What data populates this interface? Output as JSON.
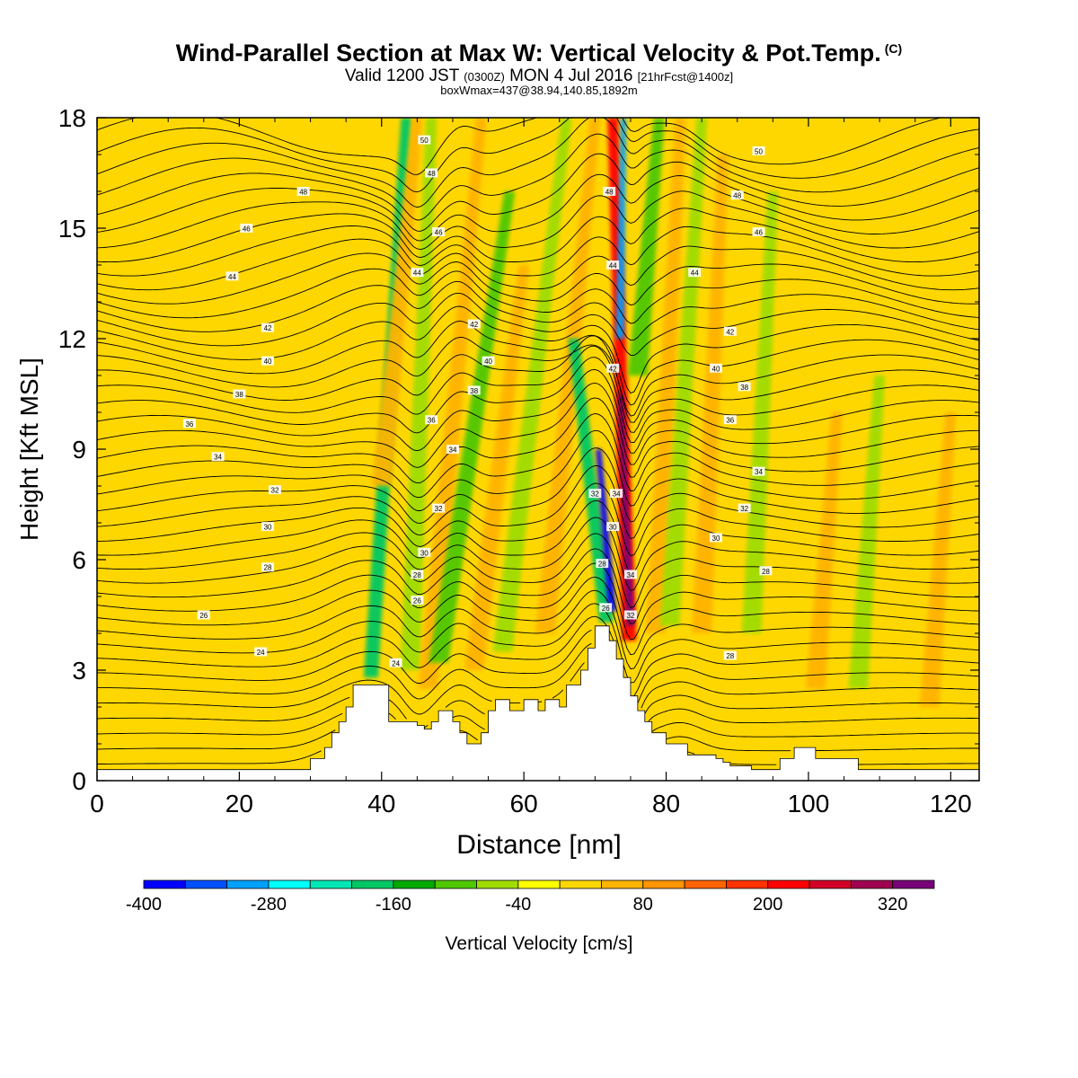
{
  "title": {
    "main": "Wind-Parallel Section at Max W: Vertical Velocity & Pot.Temp.",
    "copyright": "(C)",
    "valid_prefix": "Valid 1200 JST",
    "valid_utc": "(0300Z)",
    "valid_date": "MON 4 Jul 2016",
    "forecast": "[21hrFcst@1400z]",
    "box": "boxWmax=437@38.94,140.85,1892m"
  },
  "chart_data": {
    "type": "heatmap",
    "xlabel": "Distance [nm]",
    "ylabel": "Height [Kft MSL]",
    "xlim": [
      0,
      124
    ],
    "ylim": [
      0,
      18
    ],
    "xticks": [
      0,
      20,
      40,
      60,
      80,
      100,
      120
    ],
    "yticks": [
      0,
      3,
      6,
      9,
      12,
      15,
      18
    ],
    "background_w": 0,
    "terrain": {
      "x": [
        0,
        29,
        30,
        31,
        32,
        33,
        34,
        35,
        36,
        40,
        41,
        42,
        43,
        44,
        45,
        46,
        47,
        48,
        49,
        50,
        51,
        52,
        53,
        54,
        55,
        56,
        57,
        58,
        59,
        60,
        61,
        62,
        63,
        64,
        65,
        66,
        67,
        68,
        69,
        70,
        71,
        72,
        73,
        74,
        75,
        76,
        77,
        78,
        79,
        80,
        81,
        82,
        83,
        84,
        85,
        86,
        87,
        88,
        89,
        90,
        91,
        92,
        93,
        94,
        95,
        96,
        97,
        98,
        99,
        100,
        101,
        102,
        103,
        104,
        105,
        106,
        107,
        108,
        110,
        124
      ],
      "y": [
        0.3,
        0.3,
        0.6,
        0.6,
        0.9,
        1.3,
        1.6,
        2.0,
        2.6,
        2.6,
        1.6,
        1.6,
        1.6,
        1.6,
        1.5,
        1.4,
        1.6,
        1.9,
        1.9,
        1.6,
        1.3,
        1.0,
        1.0,
        1.3,
        1.9,
        2.2,
        2.2,
        1.9,
        1.9,
        2.2,
        2.2,
        1.9,
        2.2,
        2.2,
        2.0,
        2.6,
        2.6,
        3.0,
        3.6,
        4.2,
        4.2,
        3.8,
        3.3,
        2.8,
        2.3,
        1.9,
        1.6,
        1.3,
        1.3,
        1.0,
        1.0,
        1.0,
        0.7,
        0.7,
        0.7,
        0.7,
        0.6,
        0.5,
        0.4,
        0.4,
        0.4,
        0.3,
        0.3,
        0.3,
        0.3,
        0.6,
        0.6,
        0.9,
        0.9,
        0.9,
        0.6,
        0.6,
        0.6,
        0.6,
        0.6,
        0.6,
        0.3,
        0.3,
        0.3,
        0.3
      ]
    },
    "w_features": [
      {
        "x": 38.5,
        "y": 2.8,
        "x2": 43.5,
        "y2": 18,
        "value": -180
      },
      {
        "x": 40,
        "y": 8.0,
        "x2": 45,
        "y2": 18,
        "value": 60
      },
      {
        "x": 44,
        "y": 3.0,
        "x2": 47,
        "y2": 18,
        "value": -80
      },
      {
        "x": 46.5,
        "y": 2.5,
        "x2": 54,
        "y2": 18,
        "value": 40
      },
      {
        "x": 48,
        "y": 3.2,
        "x2": 58,
        "y2": 16,
        "value": -90
      },
      {
        "x": 53,
        "y": 3.0,
        "x2": 60,
        "y2": 14,
        "value": 50
      },
      {
        "x": 57,
        "y": 3.5,
        "x2": 66,
        "y2": 18,
        "value": -70
      },
      {
        "x": 63,
        "y": 4.0,
        "x2": 70,
        "y2": 18,
        "value": 60
      },
      {
        "x": 71.6,
        "y": 4.3,
        "x2": 67,
        "y2": 12.0,
        "value": -200
      },
      {
        "x": 72.4,
        "y": 4.6,
        "x2": 70.5,
        "y2": 9.0,
        "value": -380
      },
      {
        "x": 74.8,
        "y": 3.8,
        "x2": 72.5,
        "y2": 18,
        "value": 200
      },
      {
        "x": 75.0,
        "y": 4.2,
        "x2": 73.6,
        "y2": 10.5,
        "value": 360
      },
      {
        "x": 73.5,
        "y": 12.0,
        "x2": 74,
        "y2": 18,
        "value": -300
      },
      {
        "x": 76,
        "y": 11.0,
        "x2": 79,
        "y2": 18,
        "value": -100
      },
      {
        "x": 78.5,
        "y": 4.0,
        "x2": 82,
        "y2": 18,
        "value": 50
      },
      {
        "x": 80.5,
        "y": 4.2,
        "x2": 85,
        "y2": 18,
        "value": -80
      },
      {
        "x": 85,
        "y": 4.0,
        "x2": 88,
        "y2": 17,
        "value": 40
      },
      {
        "x": 92,
        "y": 4.0,
        "x2": 95,
        "y2": 16,
        "value": -60
      },
      {
        "x": 101,
        "y": 2.5,
        "x2": 104,
        "y2": 10,
        "value": 40
      },
      {
        "x": 107,
        "y": 2.5,
        "x2": 110,
        "y2": 11,
        "value": -60
      },
      {
        "x": 117,
        "y": 2.0,
        "x2": 120,
        "y2": 10,
        "value": 40
      }
    ],
    "theta_label_values": [
      24,
      26,
      28,
      30,
      32,
      34,
      36,
      38,
      40,
      42,
      44,
      46,
      48,
      50
    ],
    "theta_labels": [
      {
        "x": 23,
        "y": 3.5,
        "label": "24"
      },
      {
        "x": 15,
        "y": 4.5,
        "label": "26"
      },
      {
        "x": 24,
        "y": 5.8,
        "label": "28"
      },
      {
        "x": 24,
        "y": 6.9,
        "label": "30"
      },
      {
        "x": 25,
        "y": 7.9,
        "label": "32"
      },
      {
        "x": 17,
        "y": 8.8,
        "label": "34"
      },
      {
        "x": 13,
        "y": 9.7,
        "label": "36"
      },
      {
        "x": 20,
        "y": 10.5,
        "label": "38"
      },
      {
        "x": 24,
        "y": 11.4,
        "label": "40"
      },
      {
        "x": 24,
        "y": 12.3,
        "label": "42"
      },
      {
        "x": 19,
        "y": 13.7,
        "label": "44"
      },
      {
        "x": 21,
        "y": 15.0,
        "label": "46"
      },
      {
        "x": 29,
        "y": 16.0,
        "label": "48"
      },
      {
        "x": 42,
        "y": 3.2,
        "label": "24"
      },
      {
        "x": 45,
        "y": 4.9,
        "label": "26"
      },
      {
        "x": 45,
        "y": 5.6,
        "label": "28"
      },
      {
        "x": 46,
        "y": 6.2,
        "label": "30"
      },
      {
        "x": 48,
        "y": 7.4,
        "label": "32"
      },
      {
        "x": 50,
        "y": 9.0,
        "label": "34"
      },
      {
        "x": 47,
        "y": 9.8,
        "label": "36"
      },
      {
        "x": 53,
        "y": 10.6,
        "label": "38"
      },
      {
        "x": 55,
        "y": 11.4,
        "label": "40"
      },
      {
        "x": 53,
        "y": 12.4,
        "label": "42"
      },
      {
        "x": 45,
        "y": 13.8,
        "label": "44"
      },
      {
        "x": 48,
        "y": 14.9,
        "label": "46"
      },
      {
        "x": 47,
        "y": 16.5,
        "label": "48"
      },
      {
        "x": 46,
        "y": 17.4,
        "label": "50"
      },
      {
        "x": 71.5,
        "y": 4.7,
        "label": "26"
      },
      {
        "x": 71,
        "y": 5.9,
        "label": "28"
      },
      {
        "x": 72.5,
        "y": 6.9,
        "label": "30"
      },
      {
        "x": 70,
        "y": 7.8,
        "label": "32"
      },
      {
        "x": 73,
        "y": 7.8,
        "label": "34"
      },
      {
        "x": 75,
        "y": 4.5,
        "label": "32"
      },
      {
        "x": 75,
        "y": 5.6,
        "label": "34"
      },
      {
        "x": 72.5,
        "y": 11.2,
        "label": "42"
      },
      {
        "x": 72.5,
        "y": 14.0,
        "label": "44"
      },
      {
        "x": 72,
        "y": 16.0,
        "label": "48"
      },
      {
        "x": 89,
        "y": 3.4,
        "label": "28"
      },
      {
        "x": 94,
        "y": 5.7,
        "label": "28"
      },
      {
        "x": 87,
        "y": 6.6,
        "label": "30"
      },
      {
        "x": 91,
        "y": 7.4,
        "label": "32"
      },
      {
        "x": 93,
        "y": 8.4,
        "label": "34"
      },
      {
        "x": 89,
        "y": 9.8,
        "label": "36"
      },
      {
        "x": 91,
        "y": 10.7,
        "label": "38"
      },
      {
        "x": 87,
        "y": 11.2,
        "label": "40"
      },
      {
        "x": 89,
        "y": 12.2,
        "label": "42"
      },
      {
        "x": 84,
        "y": 13.8,
        "label": "44"
      },
      {
        "x": 93,
        "y": 14.9,
        "label": "46"
      },
      {
        "x": 90,
        "y": 15.9,
        "label": "48"
      },
      {
        "x": 93,
        "y": 17.1,
        "label": "50"
      }
    ]
  },
  "colorbar": {
    "label": "Vertical Velocity [cm/s]",
    "min": -400,
    "step": 40,
    "tick_values": [
      "-400",
      "-280",
      "-160",
      "-40",
      "80",
      "200",
      "320"
    ],
    "colors": [
      "#0000ff",
      "#0050ff",
      "#00a0ff",
      "#00ffff",
      "#00e6b4",
      "#00c864",
      "#00aa00",
      "#50c800",
      "#a0dc00",
      "#ffff00",
      "#ffd700",
      "#ffb400",
      "#ff9600",
      "#ff6400",
      "#ff3200",
      "#ff0000",
      "#d20028",
      "#a00050",
      "#780078"
    ]
  }
}
